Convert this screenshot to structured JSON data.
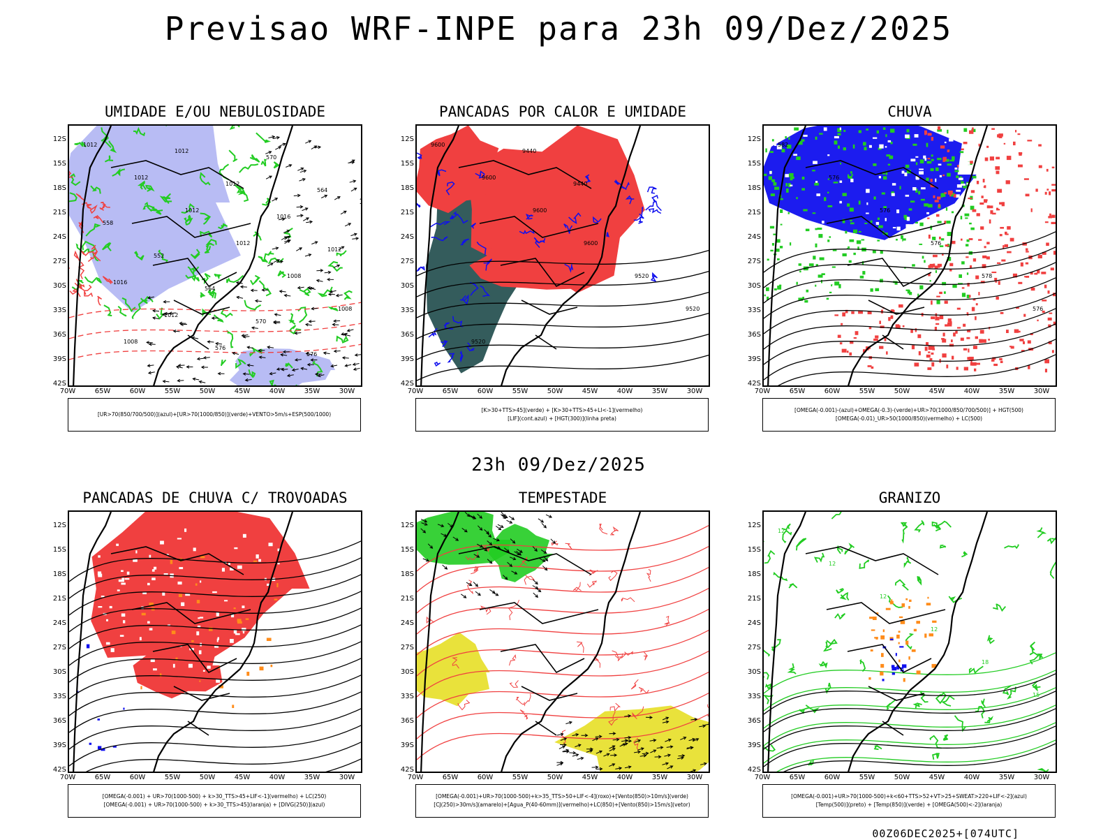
{
  "main_title": "Previsao WRF-INPE  para 23h 09/Dez/2025",
  "mid_title": "23h 09/Dez/2025",
  "footer": "00Z06DEC2025+[074UTC]",
  "axes": {
    "lat_labels": [
      "12S",
      "15S",
      "18S",
      "21S",
      "24S",
      "27S",
      "30S",
      "33S",
      "36S",
      "39S",
      "42S"
    ],
    "lon_labels": [
      "70W",
      "65W",
      "60W",
      "55W",
      "50W",
      "45W",
      "40W",
      "35W",
      "30W"
    ]
  },
  "colors": {
    "blue_humidity": "#9aa0f0",
    "green": "#22cc22",
    "red": "#f04040",
    "blue": "#1010ee",
    "orange": "#ff8c1a",
    "yellow": "#e8e030",
    "darkgreen": "#1e4a4a"
  },
  "panels": [
    {
      "title": "UMIDADE E/OU NEBULOSIDADE",
      "legend": [
        "[UR>70(850/700/500)](azul)+[UR>70(1000/850)](verde)+VENTO>5m/s+ESP(500/1000)"
      ],
      "labels": [
        "1012",
        "1012",
        "1012",
        "1012",
        "1008",
        "1008",
        "1008",
        "1012",
        "1012",
        "1016",
        "1012",
        "1016",
        "1012",
        "576",
        "570",
        "564",
        "558",
        "552",
        "564",
        "570",
        "576"
      ]
    },
    {
      "title": "PANCADAS POR CALOR E UMIDADE",
      "legend": [
        "[K>30+TTS>45](verde) + [K>30+TTS>45+LI<-1](vermelho)",
        "[LIF](cont.azul) + [HGT(300)](linha preta)"
      ],
      "labels": [
        "9600",
        "9600",
        "9600",
        "9600",
        "9520",
        "9520",
        "9520",
        "9440",
        "9440"
      ]
    },
    {
      "title": "CHUVA",
      "legend": [
        "[OMEGA(-0.001)-(azul)+OMEGA(-0.3)-(verde)+UR>70(1000/850/700/500)] + HGT(500)",
        "[OMEGA(-0.01)_UR>50(1000/850)(vermelho) + LC(500)"
      ],
      "labels": [
        "582",
        "576",
        "576",
        "576",
        "578",
        "576"
      ]
    },
    {
      "title": "PANCADAS DE CHUVA C/ TROVOADAS",
      "legend": [
        "[OMEGA(-0.001) + UR>70(1000-500) + k>30_TTS>45+LIF<-1](vermelho) + LC(250)",
        "[OMEGA(-0.001) + UR>70(1000-500) + k>30_TTS>45](laranja) + [DIVG(250)](azul)"
      ],
      "labels": []
    },
    {
      "title": "TEMPESTADE",
      "legend": [
        "[OMEGA(-0.001)+UR>70(1000-500)+k>35_TTS>50+LIF<-4](roxo)+[Vento(850)>10m/s](verde)",
        "[CJ(250)>30m/s](amarelo)+[Agua_P(40-60mm)](vermelho)+LC(850)+[Vento(850)>15m/s](vetor)"
      ],
      "labels": []
    },
    {
      "title": "GRANIZO",
      "legend": [
        "[OMEGA(-0.001)+UR>70(1000-500)+k<60+TTS>52+VT>25+SWEAT>220+LIF<-2](azul)",
        "[Temp(500)](preto) + [Temp(850)](verde) + [OMEGA(500)<-2](laranja)"
      ],
      "labels": [
        "12",
        "12",
        "12",
        "12",
        "18",
        "15"
      ]
    }
  ]
}
